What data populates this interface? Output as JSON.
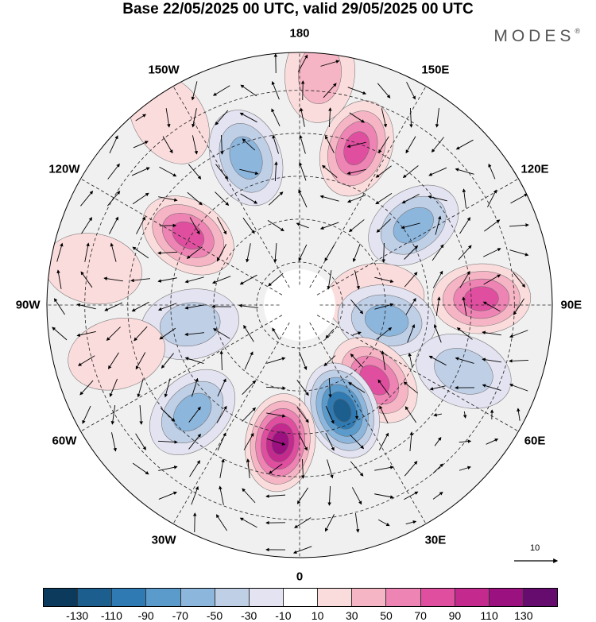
{
  "title": "Base 22/05/2025 00 UTC, valid 29/05/2025 00 UTC",
  "brand": "MODES",
  "brand_mark": "®",
  "longitude_labels": [
    {
      "id": "lon-180",
      "text": "180",
      "angle": 180
    },
    {
      "id": "lon-150e",
      "text": "150E",
      "angle": 150
    },
    {
      "id": "lon-120e",
      "text": "120E",
      "angle": 120
    },
    {
      "id": "lon-90e",
      "text": "90E",
      "angle": 90
    },
    {
      "id": "lon-60e",
      "text": "60E",
      "angle": 60
    },
    {
      "id": "lon-30e",
      "text": "30E",
      "angle": 30
    },
    {
      "id": "lon-0",
      "text": "0",
      "angle": 0
    },
    {
      "id": "lon-30w",
      "text": "30W",
      "angle": -30
    },
    {
      "id": "lon-60w",
      "text": "60W",
      "angle": -60
    },
    {
      "id": "lon-90w",
      "text": "90W",
      "angle": -90
    },
    {
      "id": "lon-120w",
      "text": "120W",
      "angle": -120
    },
    {
      "id": "lon-150w",
      "text": "150W",
      "angle": -150
    }
  ],
  "reference_vector": {
    "label": "10"
  },
  "colorbar": {
    "colors": [
      "#0c3a5c",
      "#1c5e8e",
      "#2f7ab3",
      "#5a9bcc",
      "#8db6dd",
      "#bfcfe6",
      "#e3e3f1",
      "#ffffff",
      "#fbdcdc",
      "#f5b5c4",
      "#ee84b3",
      "#e04f9f",
      "#c42a8e",
      "#9a117f",
      "#660c6e"
    ],
    "ticks": [
      "-130",
      "-110",
      "-90",
      "-70",
      "-50",
      "-30",
      "-10",
      "10",
      "30",
      "50",
      "70",
      "90",
      "110",
      "130"
    ]
  },
  "anomalies": [
    {
      "lon": 160,
      "r": 0.66,
      "value": 75
    },
    {
      "lon": 125,
      "r": 0.55,
      "value": -60
    },
    {
      "lon": 95,
      "r": 0.3,
      "value": 20
    },
    {
      "lon": 92,
      "r": 0.72,
      "value": 70
    },
    {
      "lon": 80,
      "r": 0.35,
      "value": -55
    },
    {
      "lon": 68,
      "r": 0.7,
      "value": -30
    },
    {
      "lon": 45,
      "r": 0.42,
      "value": 85
    },
    {
      "lon": 22,
      "r": 0.45,
      "value": -120
    },
    {
      "lon": -8,
      "r": 0.55,
      "value": 110
    },
    {
      "lon": -45,
      "r": 0.6,
      "value": -60
    },
    {
      "lon": -80,
      "r": 0.44,
      "value": -35
    },
    {
      "lon": -122,
      "r": 0.52,
      "value": 70
    },
    {
      "lon": -100,
      "r": 0.83,
      "value": 25
    },
    {
      "lon": -160,
      "r": 0.62,
      "value": -55
    },
    {
      "lon": -145,
      "r": 0.9,
      "value": 25
    },
    {
      "lon": -75,
      "r": 0.75,
      "value": 15
    },
    {
      "lon": 175,
      "r": 0.92,
      "value": 30
    }
  ]
}
